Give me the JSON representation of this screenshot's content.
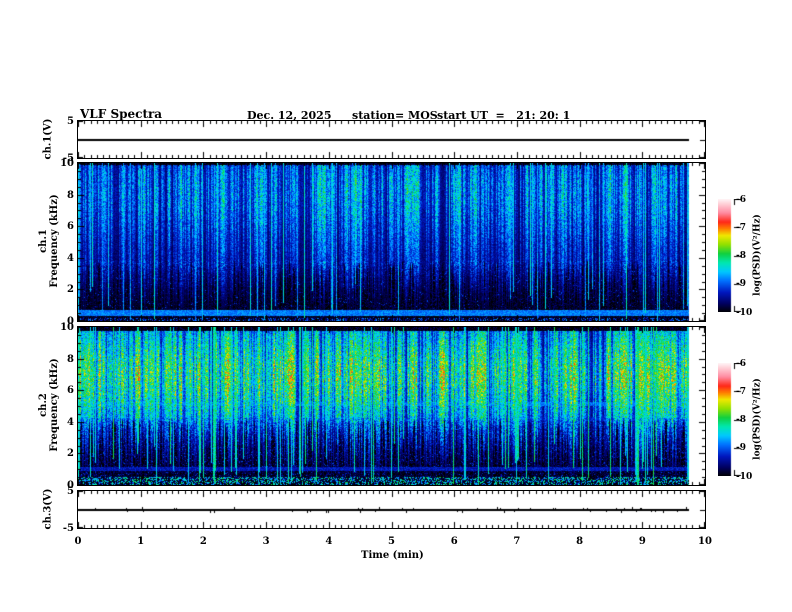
{
  "header": {
    "title": "VLF Spectra",
    "date": "Dec. 12, 2025",
    "station": "station= MOS",
    "start_ut": "start UT  =   21: 20: 1"
  },
  "xaxis": {
    "label": "Time (min)",
    "ticks": [
      "0",
      "1",
      "2",
      "3",
      "4",
      "5",
      "6",
      "7",
      "8",
      "9",
      "10"
    ],
    "lim": [
      0,
      10
    ],
    "minor_step": 0.1,
    "data_end_min": 9.75
  },
  "colorbar": {
    "label": "log(PSD)(V²/Hz)",
    "ticks": [
      "-6",
      "-7",
      "-8",
      "-9",
      "-10"
    ],
    "lim": [
      -10,
      -6
    ]
  },
  "colormap_stops": [
    [
      0.0,
      "#000000"
    ],
    [
      0.08,
      "#000060"
    ],
    [
      0.18,
      "#0018c0"
    ],
    [
      0.28,
      "#0070ff"
    ],
    [
      0.36,
      "#00c8ff"
    ],
    [
      0.44,
      "#00e8b0"
    ],
    [
      0.52,
      "#10d040"
    ],
    [
      0.6,
      "#90e000"
    ],
    [
      0.68,
      "#f0e800"
    ],
    [
      0.74,
      "#ff8000"
    ],
    [
      0.8,
      "#ff2818"
    ],
    [
      0.88,
      "#ff8aa0"
    ],
    [
      1.0,
      "#fff2f4"
    ]
  ],
  "chart_data": [
    {
      "panel": "ch1-voltage",
      "type": "line",
      "ylabel": "ch.1(V)",
      "ylim": [
        -5,
        5
      ],
      "ytick_labels": [
        "5",
        "-5"
      ],
      "yticks": [
        5,
        0,
        -5
      ],
      "series_value": 0,
      "description": "flat trace at 0 V for full record",
      "noise_spike_amp": 0.04,
      "seed": 11
    },
    {
      "panel": "ch1-spectrogram",
      "type": "heatmap",
      "ylabel_lines": [
        "ch.1",
        "Frequency (kHz)"
      ],
      "ylim": [
        0,
        10
      ],
      "minor_step": 0.5,
      "ytick_labels": [
        "10",
        "8",
        "6",
        "4",
        "2",
        "0"
      ],
      "zlim": [
        -10,
        -6
      ],
      "render": {
        "seed": 20251212,
        "core_band": [
          3.8,
          9.9
        ],
        "core_peak": 8.2,
        "sigma": 2.4,
        "gain": 2.3,
        "streak_prob": 0.5,
        "thin_streak_prob": 0.09,
        "thin_streak_level": -8.6,
        "penetration_pow": 2.2,
        "noise": 0.55,
        "speckle_prob": 0.04,
        "hlines": [
          {
            "f": 0.55,
            "level": -8.8,
            "width": 0.07
          }
        ],
        "bottom_band": {
          "f_max": 0.22,
          "level": -9.5,
          "speck_prob": 0.5
        }
      }
    },
    {
      "panel": "ch2-spectrogram",
      "type": "heatmap",
      "ylabel_lines": [
        "ch.2",
        "Frequency (kHz)"
      ],
      "ylim": [
        0,
        10
      ],
      "minor_step": 0.5,
      "ytick_labels": [
        "10",
        "8",
        "6",
        "4",
        "2",
        "0"
      ],
      "zlim": [
        -10,
        -6
      ],
      "render": {
        "seed": 424242,
        "core_band": [
          4.3,
          9.8
        ],
        "core_peak": 7.0,
        "sigma": 2.0,
        "gain": 3.35,
        "streak_prob": 0.62,
        "thin_streak_prob": 0.12,
        "thin_streak_level": -8.3,
        "penetration_pow": 1.8,
        "noise": 0.6,
        "speckle_prob": 0.1,
        "hlines": [
          {
            "f": 5.15,
            "level": -8.85,
            "width": 0.06
          },
          {
            "f": 4.2,
            "level": -9.25,
            "width": 0.05
          },
          {
            "f": 1.05,
            "level": -9.3,
            "width": 0.05
          }
        ],
        "bottom_band": {
          "f_max": 0.55,
          "level": -8.7,
          "speck_prob": 0.4
        }
      }
    },
    {
      "panel": "ch3-voltage",
      "type": "line",
      "ylabel": "ch.3(V)",
      "ylim": [
        -5,
        5
      ],
      "ytick_labels": [
        "5",
        "-5"
      ],
      "yticks": [
        5,
        0,
        -5
      ],
      "series_value": 0,
      "description": "flat trace at 0 V with small noise spikes",
      "noise_spike_amp": 0.3,
      "seed": 33
    }
  ]
}
